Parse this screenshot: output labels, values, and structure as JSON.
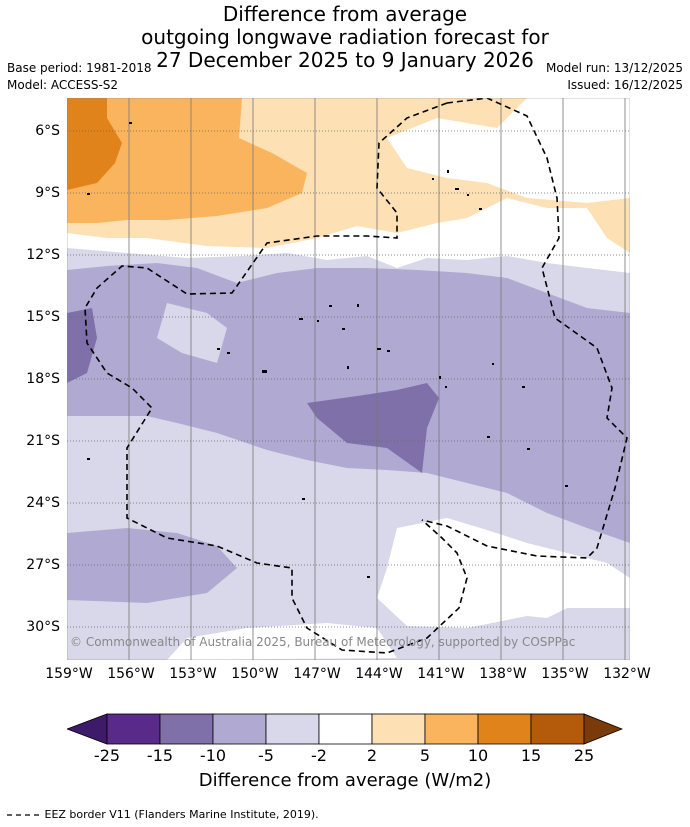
{
  "title": {
    "line1": "Difference from average",
    "line2": "outgoing longwave radiation forecast for",
    "line3": "27 December 2025 to 9 January 2026"
  },
  "meta": {
    "base_period": "Base period: 1981-2018",
    "model": "Model: ACCESS-S2",
    "model_run": "Model run: 13/12/2025",
    "issued": "Issued: 16/12/2025"
  },
  "map": {
    "lat_labels": [
      "6°S",
      "9°S",
      "12°S",
      "15°S",
      "18°S",
      "21°S",
      "24°S",
      "27°S",
      "30°S"
    ],
    "lon_labels": [
      "159°W",
      "156°W",
      "153°W",
      "150°W",
      "147°W",
      "144°W",
      "141°W",
      "138°W",
      "135°W",
      "132°W"
    ],
    "copyright": "© Commonwealth of Australia 2025, Bureau of Meteorology, supported by COSPPac",
    "colors": {
      "neg25": "#5a2a8a",
      "neg15": "#8070aa",
      "neg10": "#b0aad2",
      "neg5": "#d8d8ea",
      "neutral": "#ffffff",
      "pos2": "#fde0b4",
      "pos5": "#fbb45e",
      "pos10": "#e1831b",
      "pos15": "#b35a0b",
      "pos25": "#7a3a0a"
    }
  },
  "colorbar": {
    "ticks": [
      "-25",
      "-15",
      "-10",
      "-5",
      "-2",
      "2",
      "5",
      "10",
      "15",
      "25"
    ],
    "label": "Difference from average (W/m2)"
  },
  "legend": {
    "eez": "EEZ border V11 (Flanders Marine Institute, 2019)."
  }
}
